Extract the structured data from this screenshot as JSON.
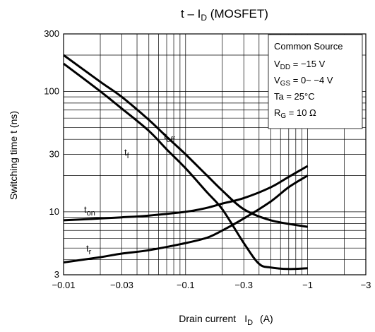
{
  "chart_data": {
    "type": "line",
    "title": "t – ",
    "title_var": "I",
    "title_sub": "D",
    "title_suffix": " (MOSFET)",
    "xlabel": "Drain current",
    "xlabel_var": "I",
    "xlabel_sub": "D",
    "xlabel_unit": "(A)",
    "ylabel": "Switching time   t   (ns)",
    "x_scale": "log",
    "y_scale": "log",
    "x_is_negative": true,
    "xlim": [
      -0.01,
      -3
    ],
    "ylim": [
      3,
      300
    ],
    "x_ticks": [
      {
        "value": -0.01,
        "label": "−0.01"
      },
      {
        "value": -0.03,
        "label": "−0.03"
      },
      {
        "value": -0.1,
        "label": "−0.1"
      },
      {
        "value": -0.3,
        "label": "−0.3"
      },
      {
        "value": -1,
        "label": "−1"
      },
      {
        "value": -3,
        "label": "−3"
      }
    ],
    "y_ticks": [
      {
        "value": 3,
        "label": "3"
      },
      {
        "value": 10,
        "label": "10"
      },
      {
        "value": 30,
        "label": "30"
      },
      {
        "value": 100,
        "label": "100"
      },
      {
        "value": 300,
        "label": "300"
      }
    ],
    "grid": true,
    "conditions": {
      "l1": "Common Source",
      "l2_var": "V",
      "l2_sub": "DD",
      "l2_rest": " = −15 V",
      "l3_var": "V",
      "l3_sub": "GS",
      "l3_rest": " = 0~ −4 V",
      "l4": "Ta = 25°C",
      "l5_var": "R",
      "l5_sub": "G",
      "l5_rest": " = 10 Ω"
    },
    "series": [
      {
        "name": "toff",
        "label_main": "t",
        "label_sub": "off",
        "x": [
          -0.01,
          -0.02,
          -0.03,
          -0.05,
          -0.07,
          -0.1,
          -0.15,
          -0.2,
          -0.3,
          -0.5,
          -1
        ],
        "y": [
          200,
          120,
          90,
          58,
          42,
          30,
          20,
          15,
          10.5,
          8.5,
          7.5
        ]
      },
      {
        "name": "tf",
        "label_main": "t",
        "label_sub": "f",
        "x": [
          -0.01,
          -0.02,
          -0.03,
          -0.05,
          -0.07,
          -0.1,
          -0.15,
          -0.2,
          -0.3,
          -0.4,
          -0.5,
          -0.7,
          -1
        ],
        "y": [
          170,
          100,
          72,
          47,
          33,
          23,
          14.5,
          10.5,
          5.5,
          3.7,
          3.45,
          3.35,
          3.4
        ]
      },
      {
        "name": "ton",
        "label_main": "t",
        "label_sub": "on",
        "x": [
          -0.01,
          -0.02,
          -0.03,
          -0.05,
          -0.1,
          -0.15,
          -0.2,
          -0.3,
          -0.5,
          -0.7,
          -1
        ],
        "y": [
          8.5,
          8.8,
          9,
          9.3,
          10,
          10.8,
          11.7,
          13,
          16,
          19.5,
          24
        ]
      },
      {
        "name": "tr",
        "label_main": "t",
        "label_sub": "r",
        "x": [
          -0.01,
          -0.02,
          -0.03,
          -0.05,
          -0.1,
          -0.15,
          -0.2,
          -0.3,
          -0.5,
          -0.7,
          -1
        ],
        "y": [
          3.8,
          4.2,
          4.5,
          4.8,
          5.5,
          6.1,
          7,
          8.8,
          12.2,
          16,
          20
        ]
      }
    ]
  }
}
